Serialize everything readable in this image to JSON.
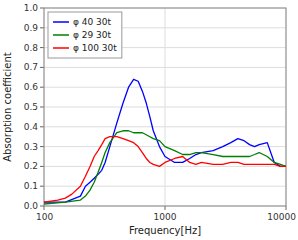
{
  "chart_data": {
    "type": "line",
    "xlabel": "Frequency[Hz]",
    "ylabel": "Absorption coefficient",
    "log": "x",
    "xlim": [
      100,
      10000
    ],
    "ylim": [
      0.0,
      1.0
    ],
    "xticks": [
      100,
      1000,
      10000
    ],
    "yticks": [
      {
        "value": 0.0,
        "label": "0.0"
      },
      0.1,
      0.2,
      0.3,
      0.4,
      0.5,
      0.6,
      0.7,
      0.8,
      0.9,
      {
        "value": 1.0,
        "label": "1.0"
      }
    ],
    "grid": true,
    "legend": "upper left",
    "series": [
      {
        "name": "φ 40 30t",
        "color": "#0000ff",
        "x": [
          100,
          150,
          200,
          220,
          240,
          260,
          280,
          300,
          320,
          350,
          400,
          450,
          500,
          550,
          600,
          650,
          700,
          750,
          800,
          900,
          1000,
          1200,
          1400,
          1600,
          1800,
          2000,
          2500,
          3000,
          3500,
          4000,
          4500,
          5000,
          5500,
          6000,
          7000,
          8000,
          9000,
          10000
        ],
        "values": [
          0.02,
          0.02,
          0.05,
          0.1,
          0.12,
          0.14,
          0.16,
          0.18,
          0.22,
          0.3,
          0.42,
          0.52,
          0.6,
          0.64,
          0.63,
          0.58,
          0.52,
          0.45,
          0.38,
          0.3,
          0.25,
          0.22,
          0.22,
          0.24,
          0.26,
          0.27,
          0.28,
          0.3,
          0.32,
          0.34,
          0.33,
          0.31,
          0.3,
          0.31,
          0.32,
          0.22,
          0.2,
          0.2
        ]
      },
      {
        "name": "φ 29 30t",
        "color": "#008000",
        "x": [
          100,
          150,
          200,
          220,
          240,
          260,
          280,
          300,
          320,
          350,
          400,
          450,
          500,
          550,
          600,
          650,
          700,
          750,
          800,
          900,
          1000,
          1200,
          1400,
          1600,
          1800,
          2000,
          2500,
          3000,
          3500,
          4000,
          4500,
          5000,
          5500,
          6000,
          7000,
          8000,
          9000,
          10000
        ],
        "values": [
          0.01,
          0.02,
          0.03,
          0.05,
          0.08,
          0.12,
          0.17,
          0.22,
          0.27,
          0.32,
          0.37,
          0.38,
          0.38,
          0.37,
          0.37,
          0.37,
          0.36,
          0.35,
          0.34,
          0.33,
          0.3,
          0.28,
          0.26,
          0.26,
          0.27,
          0.27,
          0.26,
          0.25,
          0.25,
          0.25,
          0.25,
          0.25,
          0.26,
          0.27,
          0.25,
          0.22,
          0.21,
          0.2
        ]
      },
      {
        "name": "φ 100 30t",
        "color": "#ff0000",
        "x": [
          100,
          130,
          150,
          170,
          200,
          220,
          240,
          260,
          280,
          300,
          320,
          350,
          400,
          450,
          500,
          550,
          600,
          650,
          700,
          750,
          800,
          900,
          1000,
          1200,
          1400,
          1600,
          1800,
          2000,
          2500,
          3000,
          3500,
          4000,
          4500,
          5000,
          5500,
          6000,
          7000,
          8000,
          9000,
          10000
        ],
        "values": [
          0.02,
          0.03,
          0.04,
          0.06,
          0.1,
          0.15,
          0.2,
          0.25,
          0.28,
          0.31,
          0.34,
          0.35,
          0.35,
          0.34,
          0.33,
          0.32,
          0.3,
          0.27,
          0.24,
          0.22,
          0.21,
          0.2,
          0.22,
          0.24,
          0.25,
          0.22,
          0.21,
          0.22,
          0.21,
          0.21,
          0.22,
          0.22,
          0.21,
          0.21,
          0.21,
          0.21,
          0.21,
          0.21,
          0.2,
          0.2
        ]
      }
    ]
  }
}
